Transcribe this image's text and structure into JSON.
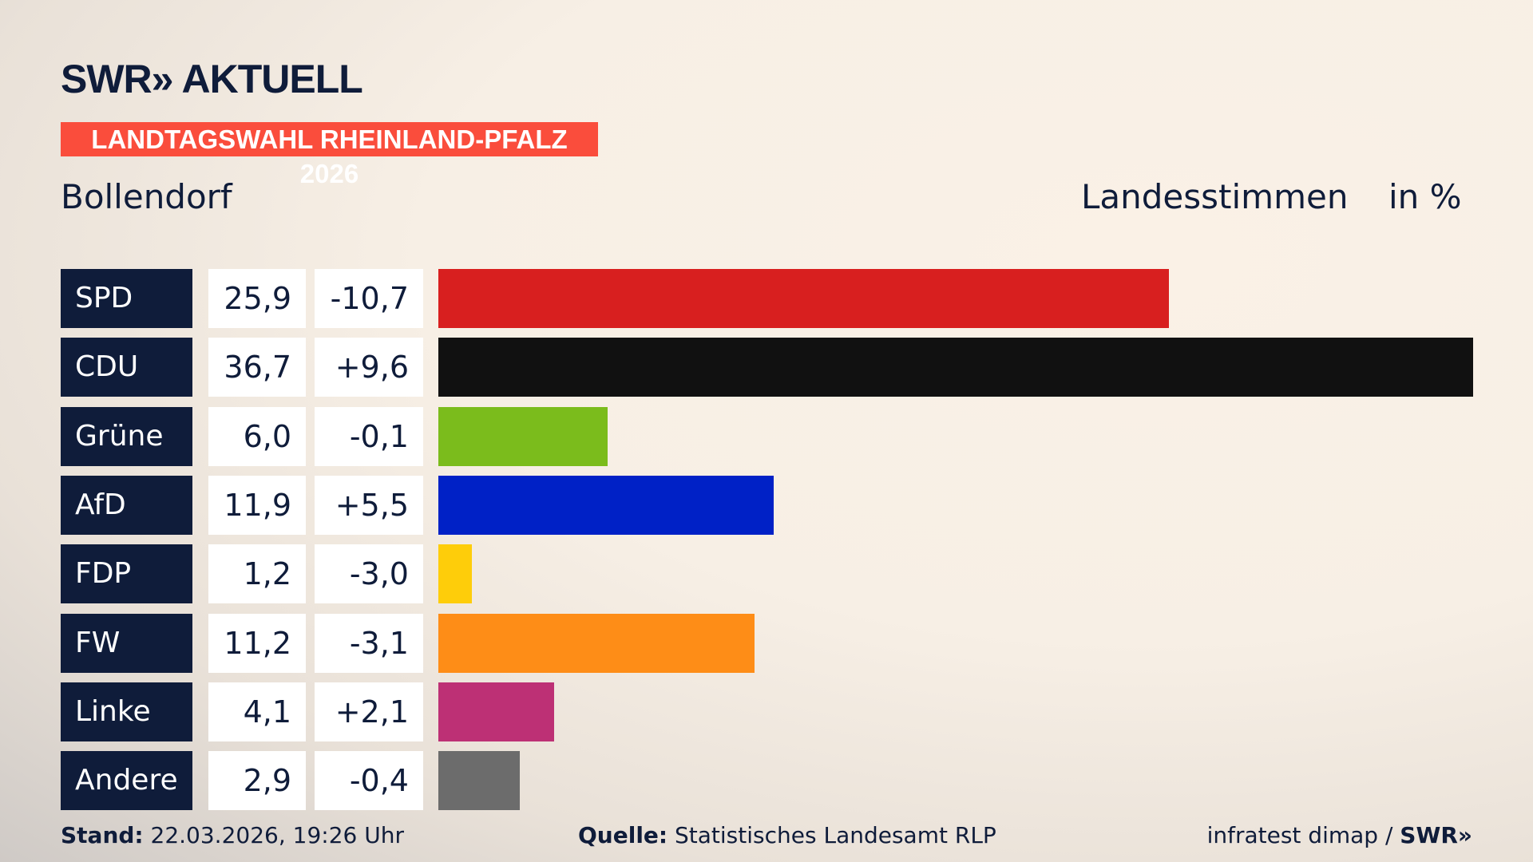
{
  "header": {
    "logo": "SWR» AKTUELL",
    "banner": "LANDTAGSWAHL RHEINLAND-PFALZ 2026",
    "place": "Bollendorf",
    "measure": "Landesstimmen",
    "unit": "in %"
  },
  "chart_data": {
    "type": "bar",
    "orientation": "horizontal",
    "categories": [
      "SPD",
      "CDU",
      "Grüne",
      "AfD",
      "FDP",
      "FW",
      "Linke",
      "Andere"
    ],
    "values": [
      25.9,
      36.7,
      6.0,
      11.9,
      1.2,
      11.2,
      4.1,
      2.9
    ],
    "value_labels": [
      "25,9",
      "36,7",
      "6,0",
      "11,9",
      "1,2",
      "11,2",
      "4,1",
      "2,9"
    ],
    "changes": [
      "-10,7",
      "+9,6",
      "-0,1",
      "+5,5",
      "-3,0",
      "-3,1",
      "+2,1",
      "-0,4"
    ],
    "colors": [
      "#d81f1f",
      "#111111",
      "#7bbc1c",
      "#0021c6",
      "#fecd0a",
      "#fe8d17",
      "#bd3075",
      "#6c6c6c"
    ],
    "xlim": [
      0,
      36.7
    ],
    "grid": false
  },
  "footer": {
    "stand_label": "Stand:",
    "stand_value": " 22.03.2026, 19:26 Uhr",
    "source_label": "Quelle:",
    "source_value": " Statistisches Landesamt RLP",
    "credit": "infratest dimap / ",
    "credit_logo": "SWR»"
  }
}
